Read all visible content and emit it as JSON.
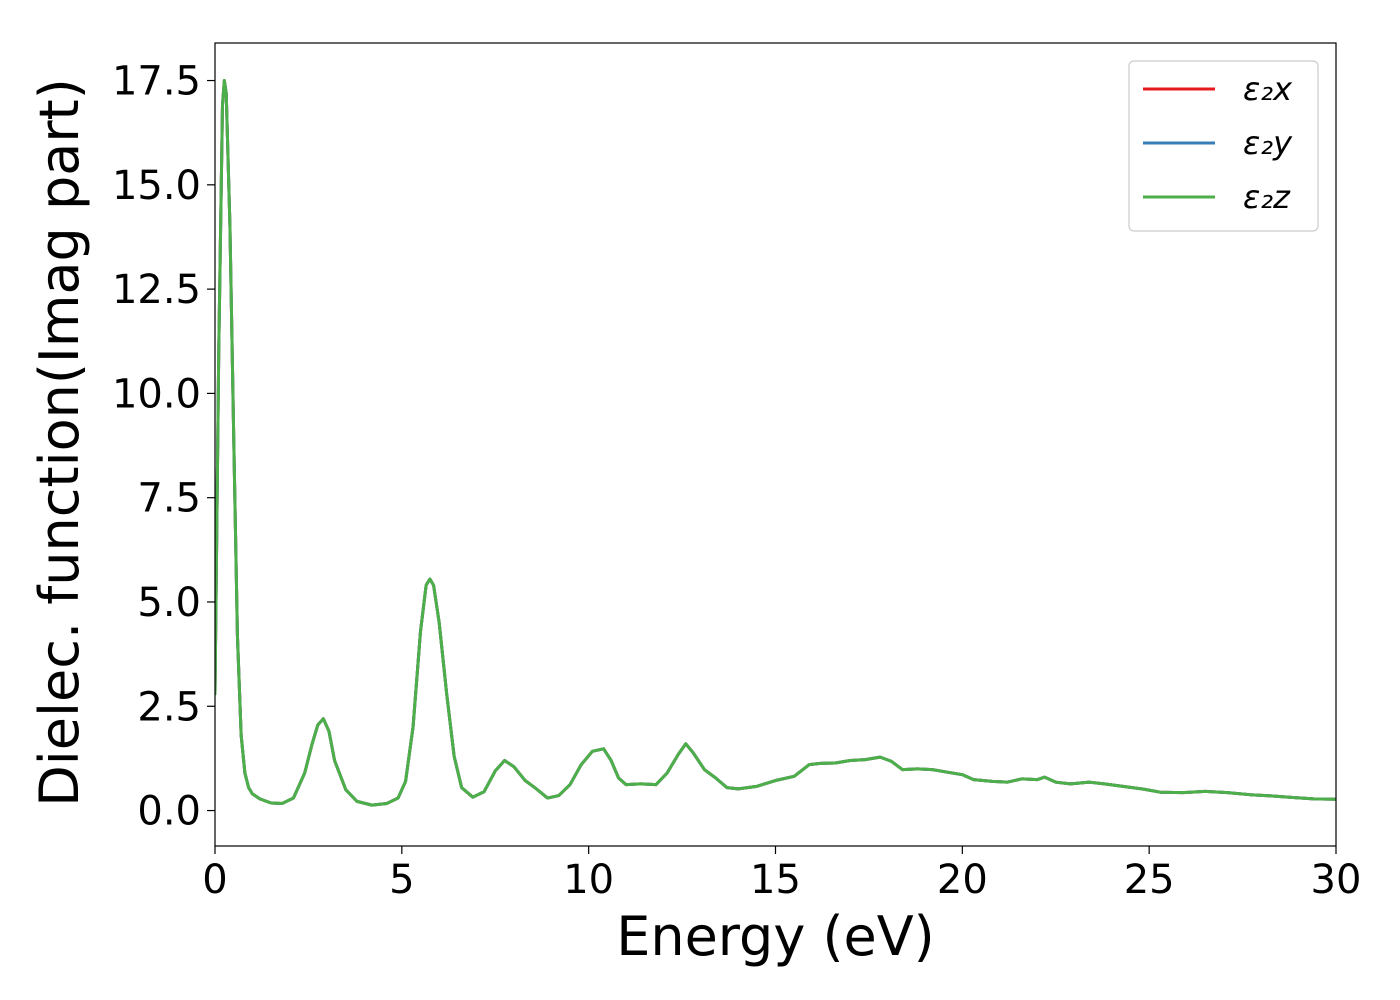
{
  "chart_data": {
    "type": "line",
    "xlabel": "Energy (eV)",
    "ylabel": "Dielec. function(Imag part)",
    "xlim": [
      0,
      30
    ],
    "ylim": [
      -0.85,
      18.4
    ],
    "xticks": [
      0,
      5,
      10,
      15,
      20,
      25,
      30
    ],
    "xtick_labels": [
      "0",
      "5",
      "10",
      "15",
      "20",
      "25",
      "30"
    ],
    "yticks": [
      0.0,
      2.5,
      5.0,
      7.5,
      10.0,
      12.5,
      15.0,
      17.5
    ],
    "ytick_labels": [
      "0.0",
      "2.5",
      "5.0",
      "7.5",
      "10.0",
      "12.5",
      "15.0",
      "17.5"
    ],
    "grid": false,
    "legend_position": "top-right",
    "x": [
      0,
      0.1,
      0.2,
      0.25,
      0.3,
      0.4,
      0.5,
      0.6,
      0.7,
      0.8,
      0.9,
      1.0,
      1.2,
      1.5,
      1.8,
      2.1,
      2.4,
      2.6,
      2.75,
      2.9,
      3.05,
      3.2,
      3.5,
      3.8,
      4.2,
      4.6,
      4.9,
      5.1,
      5.3,
      5.5,
      5.65,
      5.75,
      5.85,
      6.0,
      6.2,
      6.4,
      6.6,
      6.9,
      7.2,
      7.5,
      7.75,
      8.0,
      8.3,
      8.6,
      8.9,
      9.2,
      9.5,
      9.8,
      10.1,
      10.4,
      10.6,
      10.8,
      11.0,
      11.4,
      11.8,
      12.1,
      12.4,
      12.6,
      12.8,
      13.1,
      13.4,
      13.7,
      14.0,
      14.5,
      15.0,
      15.5,
      15.9,
      16.2,
      16.6,
      17.0,
      17.4,
      17.8,
      18.1,
      18.4,
      18.8,
      19.2,
      19.6,
      20.0,
      20.3,
      20.8,
      21.2,
      21.6,
      22.0,
      22.2,
      22.5,
      22.9,
      23.4,
      23.8,
      24.3,
      24.8,
      25.3,
      25.9,
      26.5,
      27.1,
      27.7,
      28.3,
      28.9,
      29.4,
      30.0
    ],
    "series": [
      {
        "name": "ε₂x",
        "color": "#e41a1c",
        "values": [
          2.8,
          11.0,
          16.9,
          17.5,
          17.2,
          14.0,
          9.0,
          4.2,
          1.8,
          0.9,
          0.55,
          0.4,
          0.28,
          0.18,
          0.17,
          0.3,
          0.9,
          1.6,
          2.05,
          2.2,
          1.9,
          1.2,
          0.5,
          0.22,
          0.13,
          0.17,
          0.3,
          0.7,
          2.0,
          4.3,
          5.4,
          5.55,
          5.4,
          4.5,
          2.8,
          1.3,
          0.55,
          0.32,
          0.45,
          0.95,
          1.2,
          1.05,
          0.72,
          0.52,
          0.3,
          0.36,
          0.62,
          1.1,
          1.42,
          1.48,
          1.2,
          0.78,
          0.62,
          0.64,
          0.62,
          0.9,
          1.35,
          1.6,
          1.38,
          0.98,
          0.78,
          0.55,
          0.52,
          0.58,
          0.72,
          0.82,
          1.1,
          1.13,
          1.14,
          1.2,
          1.22,
          1.28,
          1.18,
          0.98,
          1.0,
          0.98,
          0.92,
          0.86,
          0.74,
          0.7,
          0.68,
          0.76,
          0.74,
          0.8,
          0.68,
          0.64,
          0.68,
          0.64,
          0.58,
          0.52,
          0.44,
          0.43,
          0.46,
          0.43,
          0.38,
          0.35,
          0.31,
          0.28,
          0.27
        ]
      },
      {
        "name": "ε₂y",
        "color": "#377eb8",
        "values": [
          2.8,
          11.0,
          16.9,
          17.5,
          17.2,
          14.0,
          9.0,
          4.2,
          1.8,
          0.9,
          0.55,
          0.4,
          0.28,
          0.18,
          0.17,
          0.3,
          0.9,
          1.6,
          2.05,
          2.2,
          1.9,
          1.2,
          0.5,
          0.22,
          0.13,
          0.17,
          0.3,
          0.7,
          2.0,
          4.3,
          5.4,
          5.55,
          5.4,
          4.5,
          2.8,
          1.3,
          0.55,
          0.32,
          0.45,
          0.95,
          1.2,
          1.05,
          0.72,
          0.52,
          0.3,
          0.36,
          0.62,
          1.1,
          1.42,
          1.48,
          1.2,
          0.78,
          0.62,
          0.64,
          0.62,
          0.9,
          1.35,
          1.6,
          1.38,
          0.98,
          0.78,
          0.55,
          0.52,
          0.58,
          0.72,
          0.82,
          1.1,
          1.13,
          1.14,
          1.2,
          1.22,
          1.28,
          1.18,
          0.98,
          1.0,
          0.98,
          0.92,
          0.86,
          0.74,
          0.7,
          0.68,
          0.76,
          0.74,
          0.8,
          0.68,
          0.64,
          0.68,
          0.64,
          0.58,
          0.52,
          0.44,
          0.43,
          0.46,
          0.43,
          0.38,
          0.35,
          0.31,
          0.28,
          0.27
        ]
      },
      {
        "name": "ε₂z",
        "color": "#4daf4a",
        "values": [
          2.8,
          11.0,
          16.9,
          17.5,
          17.2,
          14.0,
          9.0,
          4.2,
          1.8,
          0.9,
          0.55,
          0.4,
          0.28,
          0.18,
          0.17,
          0.3,
          0.9,
          1.6,
          2.05,
          2.2,
          1.9,
          1.2,
          0.5,
          0.22,
          0.13,
          0.17,
          0.3,
          0.7,
          2.0,
          4.3,
          5.4,
          5.55,
          5.4,
          4.5,
          2.8,
          1.3,
          0.55,
          0.32,
          0.45,
          0.95,
          1.2,
          1.05,
          0.72,
          0.52,
          0.3,
          0.36,
          0.62,
          1.1,
          1.42,
          1.48,
          1.2,
          0.78,
          0.62,
          0.64,
          0.62,
          0.9,
          1.35,
          1.6,
          1.38,
          0.98,
          0.78,
          0.55,
          0.52,
          0.58,
          0.72,
          0.82,
          1.1,
          1.13,
          1.14,
          1.2,
          1.22,
          1.28,
          1.18,
          0.98,
          1.0,
          0.98,
          0.92,
          0.86,
          0.74,
          0.7,
          0.68,
          0.76,
          0.74,
          0.8,
          0.68,
          0.64,
          0.68,
          0.64,
          0.58,
          0.52,
          0.44,
          0.43,
          0.46,
          0.43,
          0.38,
          0.35,
          0.31,
          0.28,
          0.27
        ]
      }
    ]
  }
}
